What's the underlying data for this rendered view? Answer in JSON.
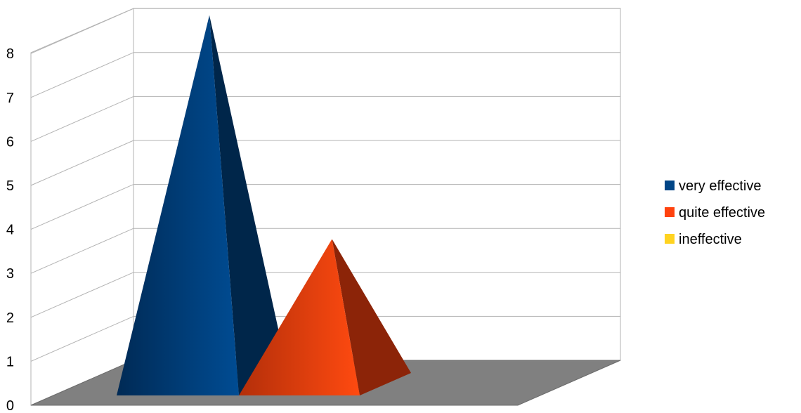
{
  "chart_data": {
    "type": "bar",
    "style": "3d-pyramid",
    "series": [
      {
        "name": "very effective",
        "value": 8.4,
        "color": "#004586"
      },
      {
        "name": "quite effective",
        "value": 3.3,
        "color": "#ff420e"
      },
      {
        "name": "ineffective",
        "value": 0,
        "color": "#ffd320"
      }
    ],
    "yticks": [
      "0",
      "1",
      "2",
      "3",
      "4",
      "5",
      "6",
      "7",
      "8"
    ],
    "ylim": [
      0,
      9
    ],
    "grid": true,
    "legend": "right",
    "colors": {
      "floor": "#808080",
      "grid": "#b3b3b3"
    }
  }
}
